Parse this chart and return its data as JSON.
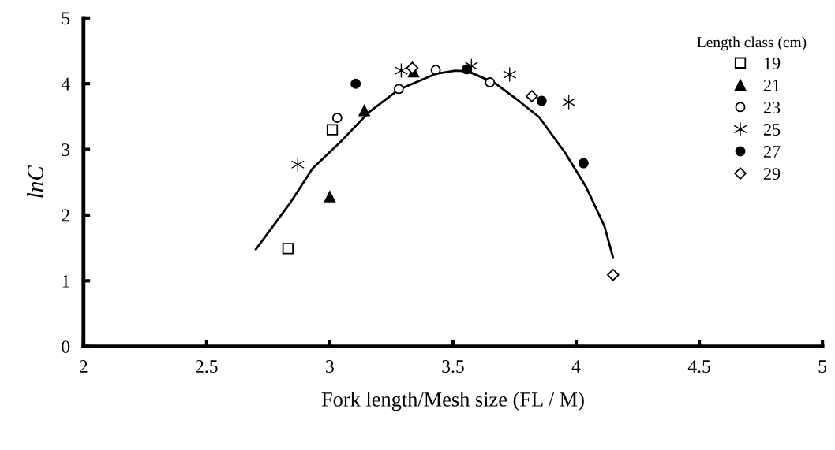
{
  "chart_data": {
    "type": "scatter",
    "xlabel": "Fork length/Mesh size (FL / M)",
    "ylabel": "lnC",
    "legend_title": "Length class (cm)",
    "legend": "right",
    "grid": false,
    "xlim": [
      2,
      5
    ],
    "xticks": [
      2,
      2.5,
      3,
      3.5,
      4,
      4.5,
      5
    ],
    "ylim": [
      0,
      5
    ],
    "yticks": [
      0,
      1,
      2,
      3,
      4,
      5
    ],
    "series": [
      {
        "name": "19",
        "color": "#ffffff",
        "marker": "square",
        "x": [
          2.83,
          3.01
        ],
        "values": [
          1.49,
          3.3
        ]
      },
      {
        "name": "21",
        "color": "#000000",
        "marker": "triangle",
        "x": [
          3.0,
          3.14,
          3.34
        ],
        "values": [
          2.28,
          3.59,
          4.18
        ]
      },
      {
        "name": "23",
        "color": "#ffffff",
        "marker": "circle",
        "x": [
          3.03,
          3.28,
          3.43,
          3.65
        ],
        "values": [
          3.48,
          3.92,
          4.21,
          4.02
        ]
      },
      {
        "name": "25",
        "color": "#000000",
        "marker": "cross",
        "x": [
          2.87,
          3.29,
          3.575,
          3.73,
          3.97
        ],
        "values": [
          2.77,
          4.2,
          4.27,
          4.14,
          3.72
        ]
      },
      {
        "name": "27",
        "color": "#000000",
        "marker": "circle",
        "x": [
          3.105,
          3.556,
          3.86,
          4.03
        ],
        "values": [
          4.0,
          4.22,
          3.74,
          2.79
        ]
      },
      {
        "name": "29",
        "color": "#ffffff",
        "marker": "diamond",
        "x": [
          3.335,
          3.82,
          4.15
        ],
        "values": [
          4.24,
          3.81,
          1.09
        ]
      },
      {
        "type": "line",
        "color": "#000000",
        "marker": "none",
        "x": [
          2.7,
          2.84,
          2.93,
          3.05,
          3.16,
          3.28,
          3.43,
          3.51,
          3.56,
          3.67,
          3.77,
          3.85,
          3.955,
          4.04,
          4.115,
          4.15
        ],
        "values": [
          1.48,
          2.19,
          2.71,
          3.14,
          3.57,
          3.91,
          4.15,
          4.2,
          4.19,
          4.01,
          3.73,
          3.49,
          2.95,
          2.43,
          1.83,
          1.35
        ]
      }
    ]
  }
}
